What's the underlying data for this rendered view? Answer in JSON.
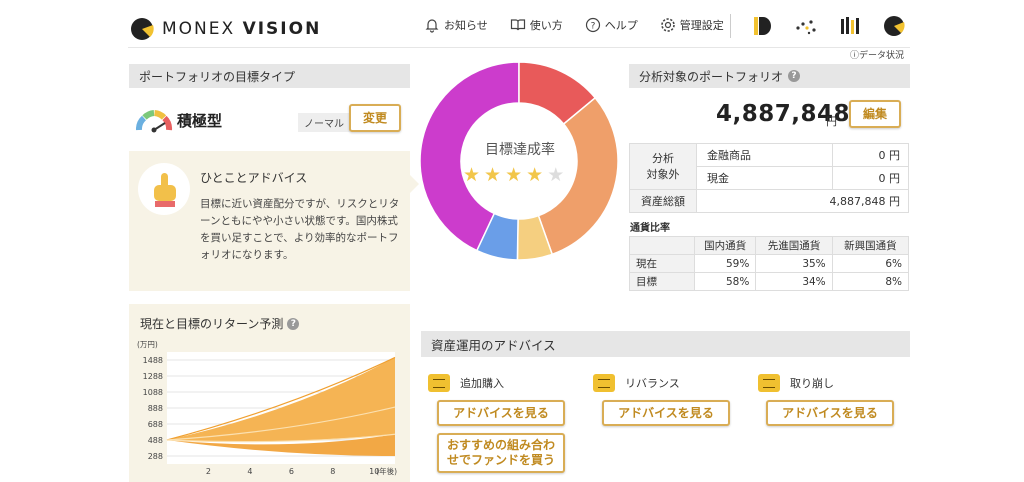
{
  "header": {
    "logo_text_light": "MONEX",
    "logo_text_bold": "VISION",
    "nav": [
      {
        "label": "お知らせ",
        "icon": "bell-icon"
      },
      {
        "label": "使い方",
        "icon": "book-icon"
      },
      {
        "label": "ヘルプ",
        "icon": "help-icon"
      },
      {
        "label": "管理設定",
        "icon": "gear-icon"
      }
    ],
    "data_status": "データ状況"
  },
  "portfolio_type": {
    "title": "ポートフォリオの目標タイプ",
    "type_name": "積極型",
    "tag": "ノーマル",
    "change_button": "変更"
  },
  "advice": {
    "title": "ひとことアドバイス",
    "text": "目標に近い資産配分ですが、リスクとリターンともにやや小さい状態です。国内株式を買い足すことで、より効率的なポートフォリオになります。"
  },
  "return_forecast": {
    "title": "現在と目標のリターン予測",
    "unit_label": "(万円)",
    "x_unit_label": "(年後)"
  },
  "donut": {
    "title": "目標達成率",
    "stars_filled": 4,
    "stars_total": 5
  },
  "analysis": {
    "title": "分析対象のポートフォリオ",
    "amount": "4,887,848",
    "amount_unit": "円",
    "edit_button": "編集",
    "excluded_label_1": "分析",
    "excluded_label_2": "対象外",
    "rows": [
      {
        "label": "金融商品",
        "value": "0 円"
      },
      {
        "label": "現金",
        "value": "0 円"
      }
    ],
    "total_label": "資産総額",
    "total_value": "4,887,848 円"
  },
  "currency": {
    "title": "通貨比率",
    "headers": [
      "国内通貨",
      "先進国通貨",
      "新興国通貨"
    ],
    "rows": [
      {
        "label": "現在",
        "values": [
          "59%",
          "35%",
          "6%"
        ]
      },
      {
        "label": "目標",
        "values": [
          "58%",
          "34%",
          "8%"
        ]
      }
    ]
  },
  "asset_advice": {
    "title": "資産運用のアドバイス",
    "items": [
      {
        "label": "追加購入",
        "button": "アドバイスを見る"
      },
      {
        "label": "リバランス",
        "button": "アドバイスを見る"
      },
      {
        "label": "取り崩し",
        "button": "アドバイスを見る"
      }
    ],
    "recommend_button_line1": "おすすめの組み合わ",
    "recommend_button_line2": "せでファンドを買う"
  },
  "colors": {
    "accent_gold": "#d9ad55",
    "donut": [
      "#cc3ccc",
      "#e85a5a",
      "#ef9f6a",
      "#f5cf80",
      "#6a9ee8"
    ]
  },
  "chart_data": [
    {
      "type": "pie",
      "title": "目標達成率",
      "categories": [
        "",
        "",
        "",
        "",
        ""
      ],
      "values": [
        41.5,
        13.5,
        29.5,
        5.5,
        6.5
      ]
    },
    {
      "type": "area",
      "title": "現在と目標のリターン予測",
      "xlabel": "(年後)",
      "ylabel": "(万円)",
      "x_ticks": [
        "2",
        "4",
        "6",
        "8",
        "10"
      ],
      "y_ticks": [
        "288",
        "488",
        "688",
        "888",
        "1088",
        "1288",
        "1488"
      ],
      "xlim": [
        0,
        11
      ],
      "ylim": [
        188,
        1588
      ],
      "series": [
        {
          "values": [
            [
              0,
              488
            ],
            [
              11,
              1520
            ]
          ]
        },
        {
          "values": [
            [
              0,
              488
            ],
            [
              11,
              900
            ]
          ]
        },
        {
          "values": [
            [
              0,
              488
            ],
            [
              11,
              560
            ]
          ]
        }
      ]
    }
  ]
}
